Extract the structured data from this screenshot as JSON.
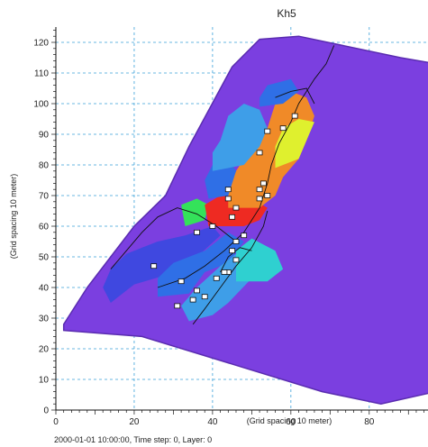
{
  "chart_data": {
    "type": "heatmap",
    "title": "Kh5",
    "xlabel": "(Grid spacing 10 meter)",
    "ylabel": "(Grid spacing 10 meter)",
    "xlim": [
      0,
      95
    ],
    "ylim": [
      0,
      125
    ],
    "x_ticks": [
      0,
      20,
      40,
      60,
      80
    ],
    "y_ticks": [
      0,
      10,
      20,
      30,
      40,
      50,
      60,
      70,
      80,
      90,
      100,
      110,
      120
    ],
    "grid": true,
    "colors": {
      "background_zone": "#7b3fe0",
      "blue": "#2f6fe6",
      "dark_blue": "#3f48e0",
      "light_blue": "#3e9ee8",
      "cyan": "#2fd0d0",
      "green": "#34e25a",
      "red": "#ee2a22",
      "orange": "#f08a28",
      "yellow": "#dff02e"
    },
    "zones": [
      {
        "color": "background_zone",
        "polygon": [
          [
            2,
            26
          ],
          [
            22,
            24
          ],
          [
            68,
            6
          ],
          [
            83,
            2
          ],
          [
            97,
            6
          ],
          [
            97,
            113
          ],
          [
            88,
            115
          ],
          [
            62,
            122
          ],
          [
            52,
            121
          ],
          [
            45,
            112
          ],
          [
            34,
            86
          ],
          [
            28,
            70
          ],
          [
            20,
            60
          ],
          [
            8,
            40
          ],
          [
            2,
            28
          ]
        ]
      },
      {
        "color": "dark_blue",
        "polygon": [
          [
            18,
            44
          ],
          [
            28,
            47
          ],
          [
            34,
            53
          ],
          [
            30,
            56
          ],
          [
            22,
            53
          ],
          [
            18,
            48
          ]
        ]
      },
      {
        "color": "dark_blue",
        "polygon": [
          [
            14,
            35
          ],
          [
            20,
            41
          ],
          [
            28,
            44
          ],
          [
            36,
            50
          ],
          [
            42,
            57
          ],
          [
            40,
            60
          ],
          [
            33,
            57
          ],
          [
            26,
            55
          ],
          [
            18,
            51
          ],
          [
            14,
            46
          ],
          [
            12,
            40
          ]
        ]
      },
      {
        "color": "blue",
        "polygon": [
          [
            26,
            37
          ],
          [
            34,
            38
          ],
          [
            38,
            45
          ],
          [
            44,
            48
          ],
          [
            48,
            55
          ],
          [
            44,
            58
          ],
          [
            38,
            52
          ],
          [
            30,
            48
          ],
          [
            26,
            43
          ]
        ]
      },
      {
        "color": "light_blue",
        "polygon": [
          [
            34,
            29
          ],
          [
            40,
            31
          ],
          [
            44,
            35
          ],
          [
            50,
            43
          ],
          [
            52,
            50
          ],
          [
            48,
            53
          ],
          [
            42,
            47
          ],
          [
            36,
            40
          ],
          [
            32,
            34
          ]
        ]
      },
      {
        "color": "cyan",
        "polygon": [
          [
            46,
            42
          ],
          [
            54,
            42
          ],
          [
            58,
            46
          ],
          [
            56,
            52
          ],
          [
            50,
            56
          ],
          [
            46,
            52
          ]
        ]
      },
      {
        "color": "green",
        "polygon": [
          [
            33,
            60
          ],
          [
            38,
            62
          ],
          [
            39,
            67
          ],
          [
            36,
            69
          ],
          [
            32,
            67
          ]
        ]
      },
      {
        "color": "red",
        "polygon": [
          [
            39,
            60
          ],
          [
            48,
            60
          ],
          [
            52,
            62
          ],
          [
            54,
            66
          ],
          [
            50,
            69
          ],
          [
            42,
            70
          ],
          [
            38,
            67
          ]
        ]
      },
      {
        "color": "orange",
        "polygon": [
          [
            44,
            66
          ],
          [
            52,
            66
          ],
          [
            56,
            70
          ],
          [
            58,
            76
          ],
          [
            62,
            82
          ],
          [
            64,
            88
          ],
          [
            66,
            96
          ],
          [
            64,
            102
          ],
          [
            60,
            104
          ],
          [
            56,
            100
          ],
          [
            54,
            92
          ],
          [
            50,
            86
          ],
          [
            46,
            78
          ],
          [
            44,
            72
          ]
        ]
      },
      {
        "color": "yellow",
        "polygon": [
          [
            56,
            79
          ],
          [
            62,
            82
          ],
          [
            64,
            88
          ],
          [
            66,
            94
          ],
          [
            62,
            95
          ],
          [
            58,
            92
          ],
          [
            56,
            86
          ]
        ]
      },
      {
        "color": "blue",
        "polygon": [
          [
            39,
            69
          ],
          [
            44,
            70
          ],
          [
            46,
            78
          ],
          [
            44,
            82
          ],
          [
            40,
            80
          ],
          [
            38,
            75
          ]
        ]
      },
      {
        "color": "light_blue",
        "polygon": [
          [
            40,
            78
          ],
          [
            48,
            80
          ],
          [
            52,
            86
          ],
          [
            54,
            92
          ],
          [
            52,
            98
          ],
          [
            48,
            100
          ],
          [
            44,
            96
          ],
          [
            42,
            88
          ],
          [
            40,
            84
          ]
        ]
      },
      {
        "color": "blue",
        "polygon": [
          [
            52,
            99
          ],
          [
            58,
            100
          ],
          [
            62,
            104
          ],
          [
            60,
            108
          ],
          [
            54,
            106
          ],
          [
            52,
            102
          ]
        ]
      }
    ],
    "wells": [
      [
        61,
        96
      ],
      [
        58,
        92
      ],
      [
        54,
        91
      ],
      [
        52,
        84
      ],
      [
        53,
        74
      ],
      [
        52,
        72
      ],
      [
        54,
        70
      ],
      [
        52,
        69
      ],
      [
        44,
        72
      ],
      [
        44,
        69
      ],
      [
        46,
        66
      ],
      [
        45,
        63
      ],
      [
        48,
        57
      ],
      [
        46,
        55
      ],
      [
        45,
        52
      ],
      [
        46,
        49
      ],
      [
        44,
        45
      ],
      [
        43,
        45
      ],
      [
        41,
        43
      ],
      [
        38,
        37
      ],
      [
        36,
        39
      ],
      [
        35,
        36
      ],
      [
        31,
        34
      ],
      [
        32,
        42
      ],
      [
        40,
        60
      ],
      [
        36,
        58
      ],
      [
        25,
        47
      ]
    ],
    "status_text": "2000-01-01 10:00:00, Time step: 0, Layer: 0"
  }
}
